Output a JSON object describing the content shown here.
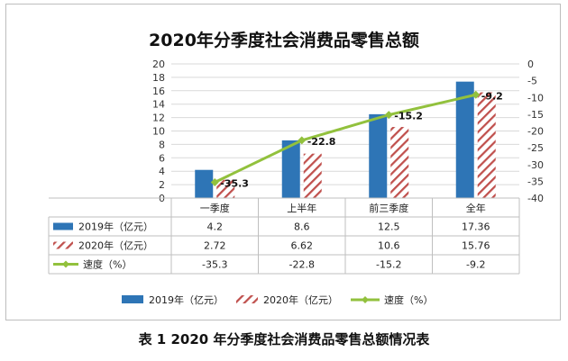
{
  "chart_data": {
    "type": "bar",
    "title": "2020年分季度社会消费品零售总额",
    "categories": [
      "一季度",
      "上半年",
      "前三季度",
      "全年"
    ],
    "series": [
      {
        "name": "2019年（亿元）",
        "kind": "bar",
        "color": "#2e75b6",
        "values": [
          4.2,
          8.6,
          12.5,
          17.36
        ],
        "display": [
          "4.2",
          "8.6",
          "12.5",
          "17.36"
        ]
      },
      {
        "name": "2020年（亿元）",
        "kind": "bar-hatched",
        "color": "#c0504d",
        "values": [
          2.72,
          6.62,
          10.6,
          15.76
        ],
        "display": [
          "2.72",
          "6.62",
          "10.6",
          "15.76"
        ]
      },
      {
        "name": "速度（%）",
        "kind": "line",
        "color": "#92c13d",
        "axis": "right",
        "values": [
          -35.3,
          -22.8,
          -15.2,
          -9.2
        ],
        "display": [
          "-35.3",
          "-22.8",
          "-15.2",
          "-9.2"
        ]
      }
    ],
    "ylim": [
      0,
      20
    ],
    "yticks": [
      "20",
      "18",
      "16",
      "14",
      "12",
      "10",
      "8",
      "6",
      "4",
      "2",
      "0"
    ],
    "y2lim": [
      -40,
      0
    ],
    "y2ticks": [
      "0",
      "-5",
      "-10",
      "-15",
      "-20",
      "-25",
      "-30",
      "-35",
      "-40"
    ],
    "data_labels": [
      "-35.3",
      "-22.8",
      "-15.2",
      "-9.2"
    ],
    "legend": [
      "2019年（亿元）",
      "2020年（亿元）",
      "速度（%）"
    ],
    "legend_position": "bottom"
  },
  "caption": "表 1   2020 年分季度社会消费品零售总额情况表"
}
